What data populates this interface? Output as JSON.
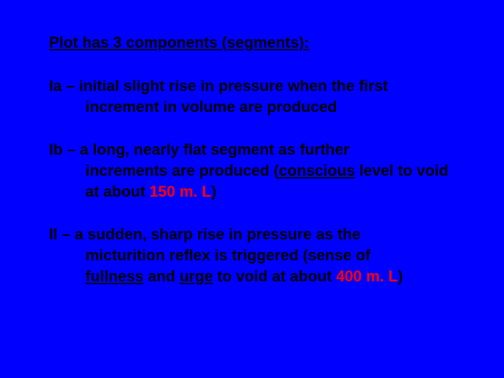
{
  "background_color": "#0000ff",
  "text_color": "#000000",
  "highlight_color": "#ff0000",
  "font_family": "Arial, Helvetica, sans-serif",
  "heading_fontsize": 22,
  "body_fontsize": 22,
  "heading": "Plot has 3 components (segments):",
  "items": [
    {
      "label": "Ia",
      "line1": "initial slight rise in pressure when the first",
      "line2": "increment in volume are produced"
    },
    {
      "label": "Ib",
      "line1": "a long, nearly flat segment as further",
      "line2_pre": "increments are produced (",
      "kw1": "conscious",
      "line2_mid": " level to void at about ",
      "val1": "150 m. L",
      "line2_post": ")"
    },
    {
      "label": "II",
      "line1": "a sudden, sharp rise in pressure as the",
      "line2": "micturition reflex is triggered (sense of ",
      "kw1": "fullness",
      "line3_mid1": " and ",
      "kw2": "urge",
      "line3_mid2": " to void at about ",
      "val1": "400 m. L",
      "line3_post": ")"
    }
  ]
}
